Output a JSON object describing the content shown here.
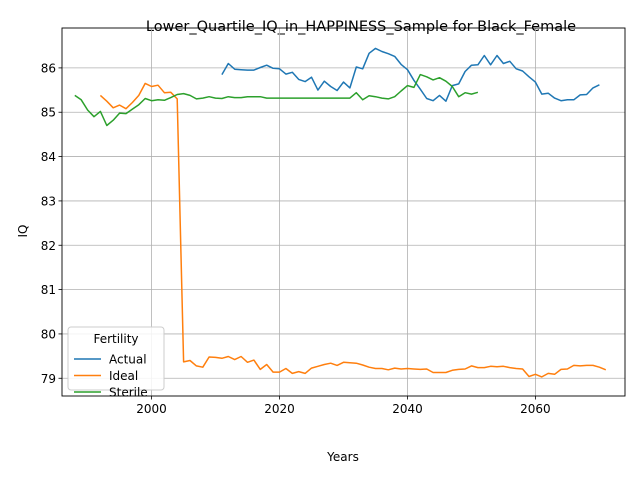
{
  "chart_data": {
    "type": "line",
    "title": "Lower_Quartile_IQ_in_HAPPINESS_Sample for Black_Female",
    "xlabel": "Years",
    "ylabel": "IQ",
    "xlim": [
      1986,
      2074
    ],
    "ylim": [
      78.6,
      86.9
    ],
    "xticks": [
      2000,
      2020,
      2040,
      2060
    ],
    "yticks": [
      79,
      80,
      81,
      82,
      83,
      84,
      85,
      86
    ],
    "grid": true,
    "legend": {
      "title": "Fertility",
      "position": "lower-left"
    },
    "series": [
      {
        "name": "Actual",
        "color": "#1f77b4",
        "points": [
          [
            2011,
            85.85
          ],
          [
            2012,
            86.1
          ],
          [
            2013,
            85.97
          ],
          [
            2014,
            85.96
          ],
          [
            2015,
            85.95
          ],
          [
            2016,
            85.95
          ],
          [
            2017,
            86.01
          ],
          [
            2018,
            86.06
          ],
          [
            2019,
            85.99
          ],
          [
            2020,
            85.98
          ],
          [
            2021,
            85.86
          ],
          [
            2022,
            85.9
          ],
          [
            2023,
            85.74
          ],
          [
            2024,
            85.69
          ],
          [
            2025,
            85.79
          ],
          [
            2026,
            85.5
          ],
          [
            2027,
            85.7
          ],
          [
            2028,
            85.58
          ],
          [
            2029,
            85.49
          ],
          [
            2030,
            85.68
          ],
          [
            2031,
            85.55
          ],
          [
            2032,
            86.02
          ],
          [
            2033,
            85.98
          ],
          [
            2034,
            86.33
          ],
          [
            2035,
            86.44
          ],
          [
            2036,
            86.37
          ],
          [
            2037,
            86.32
          ],
          [
            2038,
            86.26
          ],
          [
            2039,
            86.08
          ],
          [
            2040,
            85.96
          ],
          [
            2041,
            85.72
          ],
          [
            2042,
            85.52
          ],
          [
            2043,
            85.31
          ],
          [
            2044,
            85.26
          ],
          [
            2045,
            85.38
          ],
          [
            2046,
            85.25
          ],
          [
            2047,
            85.6
          ],
          [
            2048,
            85.64
          ],
          [
            2049,
            85.92
          ],
          [
            2050,
            86.06
          ],
          [
            2051,
            86.07
          ],
          [
            2052,
            86.28
          ],
          [
            2053,
            86.07
          ],
          [
            2054,
            86.28
          ],
          [
            2055,
            86.1
          ],
          [
            2056,
            86.15
          ],
          [
            2057,
            85.98
          ],
          [
            2058,
            85.93
          ],
          [
            2059,
            85.8
          ],
          [
            2060,
            85.68
          ],
          [
            2061,
            85.41
          ],
          [
            2062,
            85.43
          ],
          [
            2063,
            85.32
          ],
          [
            2064,
            85.26
          ],
          [
            2065,
            85.28
          ],
          [
            2066,
            85.28
          ],
          [
            2067,
            85.39
          ],
          [
            2068,
            85.4
          ],
          [
            2069,
            85.55
          ],
          [
            2070,
            85.62
          ]
        ]
      },
      {
        "name": "Ideal",
        "color": "#ff7f0e",
        "points": [
          [
            1992,
            85.38
          ],
          [
            1993,
            85.25
          ],
          [
            1994,
            85.1
          ],
          [
            1995,
            85.16
          ],
          [
            1996,
            85.08
          ],
          [
            1997,
            85.22
          ],
          [
            1998,
            85.38
          ],
          [
            1999,
            85.65
          ],
          [
            2000,
            85.58
          ],
          [
            2001,
            85.61
          ],
          [
            2002,
            85.44
          ],
          [
            2003,
            85.45
          ],
          [
            2004,
            85.3
          ],
          [
            2005,
            79.37
          ],
          [
            2006,
            79.4
          ],
          [
            2007,
            79.28
          ],
          [
            2008,
            79.25
          ],
          [
            2009,
            79.48
          ],
          [
            2010,
            79.47
          ],
          [
            2011,
            79.45
          ],
          [
            2012,
            79.49
          ],
          [
            2013,
            79.42
          ],
          [
            2014,
            79.49
          ],
          [
            2015,
            79.36
          ],
          [
            2016,
            79.41
          ],
          [
            2017,
            79.2
          ],
          [
            2018,
            79.31
          ],
          [
            2019,
            79.14
          ],
          [
            2020,
            79.14
          ],
          [
            2021,
            79.22
          ],
          [
            2022,
            79.11
          ],
          [
            2023,
            79.15
          ],
          [
            2024,
            79.11
          ],
          [
            2025,
            79.23
          ],
          [
            2026,
            79.27
          ],
          [
            2027,
            79.31
          ],
          [
            2028,
            79.34
          ],
          [
            2029,
            79.29
          ],
          [
            2030,
            79.36
          ],
          [
            2031,
            79.35
          ],
          [
            2032,
            79.34
          ],
          [
            2033,
            79.3
          ],
          [
            2034,
            79.25
          ],
          [
            2035,
            79.22
          ],
          [
            2036,
            79.22
          ],
          [
            2037,
            79.19
          ],
          [
            2038,
            79.23
          ],
          [
            2039,
            79.21
          ],
          [
            2040,
            79.22
          ],
          [
            2041,
            79.21
          ],
          [
            2042,
            79.2
          ],
          [
            2043,
            79.21
          ],
          [
            2044,
            79.13
          ],
          [
            2045,
            79.13
          ],
          [
            2046,
            79.13
          ],
          [
            2047,
            79.18
          ],
          [
            2048,
            79.2
          ],
          [
            2049,
            79.21
          ],
          [
            2050,
            79.28
          ],
          [
            2051,
            79.24
          ],
          [
            2052,
            79.24
          ],
          [
            2053,
            79.27
          ],
          [
            2054,
            79.26
          ],
          [
            2055,
            79.27
          ],
          [
            2056,
            79.24
          ],
          [
            2057,
            79.22
          ],
          [
            2058,
            79.21
          ],
          [
            2059,
            79.04
          ],
          [
            2060,
            79.09
          ],
          [
            2061,
            79.03
          ],
          [
            2062,
            79.11
          ],
          [
            2063,
            79.09
          ],
          [
            2064,
            79.2
          ],
          [
            2065,
            79.21
          ],
          [
            2066,
            79.29
          ],
          [
            2067,
            79.28
          ],
          [
            2068,
            79.29
          ],
          [
            2069,
            79.29
          ],
          [
            2070,
            79.25
          ],
          [
            2071,
            79.19
          ]
        ]
      },
      {
        "name": "Sterile",
        "color": "#2ca02c",
        "points": [
          [
            1988,
            85.38
          ],
          [
            1989,
            85.28
          ],
          [
            1990,
            85.05
          ],
          [
            1991,
            84.9
          ],
          [
            1992,
            85.02
          ],
          [
            1993,
            84.7
          ],
          [
            1994,
            84.82
          ],
          [
            1995,
            84.98
          ],
          [
            1996,
            84.97
          ],
          [
            1997,
            85.07
          ],
          [
            1998,
            85.17
          ],
          [
            1999,
            85.31
          ],
          [
            2000,
            85.26
          ],
          [
            2001,
            85.28
          ],
          [
            2002,
            85.27
          ],
          [
            2003,
            85.33
          ],
          [
            2004,
            85.4
          ],
          [
            2005,
            85.42
          ],
          [
            2006,
            85.38
          ],
          [
            2007,
            85.3
          ],
          [
            2008,
            85.32
          ],
          [
            2009,
            85.35
          ],
          [
            2010,
            85.32
          ],
          [
            2011,
            85.31
          ],
          [
            2012,
            85.35
          ],
          [
            2013,
            85.33
          ],
          [
            2014,
            85.33
          ],
          [
            2015,
            85.35
          ],
          [
            2016,
            85.35
          ],
          [
            2017,
            85.35
          ],
          [
            2018,
            85.32
          ],
          [
            2019,
            85.32
          ],
          [
            2020,
            85.32
          ],
          [
            2021,
            85.32
          ],
          [
            2022,
            85.32
          ],
          [
            2023,
            85.32
          ],
          [
            2024,
            85.32
          ],
          [
            2025,
            85.32
          ],
          [
            2026,
            85.32
          ],
          [
            2027,
            85.32
          ],
          [
            2028,
            85.32
          ],
          [
            2029,
            85.32
          ],
          [
            2030,
            85.32
          ],
          [
            2031,
            85.32
          ],
          [
            2032,
            85.44
          ],
          [
            2033,
            85.28
          ],
          [
            2034,
            85.37
          ],
          [
            2035,
            85.35
          ],
          [
            2036,
            85.32
          ],
          [
            2037,
            85.3
          ],
          [
            2038,
            85.35
          ],
          [
            2039,
            85.48
          ],
          [
            2040,
            85.6
          ],
          [
            2041,
            85.56
          ],
          [
            2042,
            85.85
          ],
          [
            2043,
            85.8
          ],
          [
            2044,
            85.73
          ],
          [
            2045,
            85.78
          ],
          [
            2046,
            85.7
          ],
          [
            2047,
            85.58
          ],
          [
            2048,
            85.35
          ],
          [
            2049,
            85.44
          ],
          [
            2050,
            85.41
          ],
          [
            2051,
            85.45
          ]
        ]
      }
    ]
  }
}
